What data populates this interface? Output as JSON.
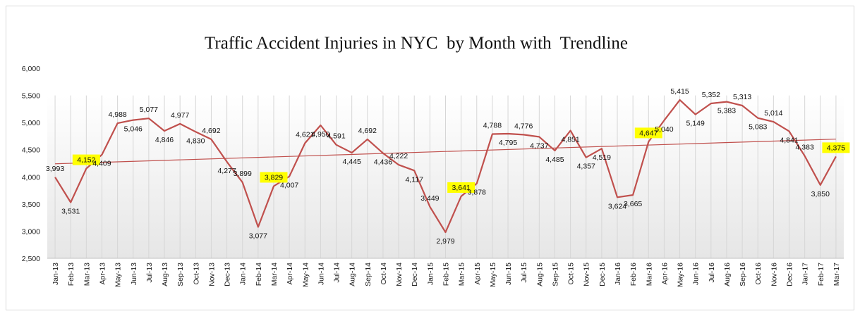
{
  "chart_data": {
    "type": "line",
    "title": "Traffic Accident Injuries in NYC  by Month with  Trendline",
    "xlabel": "",
    "ylabel": "",
    "ylim": [
      2500,
      6000
    ],
    "yticks": [
      "2,500",
      "3,000",
      "3,500",
      "4,000",
      "4,500",
      "5,000",
      "5,500",
      "6,000"
    ],
    "grid": "vertical",
    "legend": "none",
    "categories": [
      "Jan-13",
      "Feb-13",
      "Mar-13",
      "Apr-13",
      "May-13",
      "Jun-13",
      "Jul-13",
      "Aug-13",
      "Sep-13",
      "Oct-13",
      "Nov-13",
      "Dec-13",
      "Jan-14",
      "Feb-14",
      "Mar-14",
      "Apr-14",
      "May-14",
      "Jun-14",
      "Jul-14",
      "Aug-14",
      "Sep-14",
      "Oct-14",
      "Nov-14",
      "Dec-14",
      "Jan-15",
      "Feb-15",
      "Mar-15",
      "Apr-15",
      "May-15",
      "Jun-15",
      "Jul-15",
      "Aug-15",
      "Sep-15",
      "Oct-15",
      "Nov-15",
      "Dec-15",
      "Jan-16",
      "Feb-16",
      "Mar-16",
      "Apr-16",
      "May-16",
      "Jun-16",
      "Jul-16",
      "Aug-16",
      "Sep-16",
      "Oct-16",
      "Nov-16",
      "Dec-16",
      "Jan-17",
      "Feb-17",
      "Mar-17"
    ],
    "series": [
      {
        "values": [
          3993,
          3531,
          4152,
          4409,
          4988,
          5046,
          5077,
          4846,
          4977,
          4830,
          4692,
          4277,
          3899,
          3077,
          3829,
          4007,
          4621,
          4950,
          4591,
          4445,
          4692,
          4436,
          4222,
          4117,
          3449,
          2979,
          3641,
          3878,
          4788,
          4795,
          4776,
          4737,
          4485,
          4851,
          4357,
          4519,
          3624,
          3665,
          4647,
          5040,
          5415,
          5149,
          5352,
          5383,
          5313,
          5083,
          5014,
          4841,
          4383,
          3850,
          4375
        ],
        "labels": [
          "3,993",
          "3,531",
          "4,152",
          "4,409",
          "4,988",
          "5,046",
          "5,077",
          "4,846",
          "4,977",
          "4,830",
          "4,692",
          "4,277",
          "3,899",
          "3,077",
          "3,829",
          "4,007",
          "4,621",
          "4,950",
          "4,591",
          "4,445",
          "4,692",
          "4,436",
          "4,222",
          "4,117",
          "3,449",
          "2,979",
          "3,641",
          "3,878",
          "4,788",
          "4,795",
          "4,776",
          "4,737",
          "4,485",
          "4,851",
          "4,357",
          "4,519",
          "3,624",
          "3,665",
          "4,647",
          "5,040",
          "5,415",
          "5,149",
          "5,352",
          "5,383",
          "5,313",
          "5,083",
          "5,014",
          "4,841",
          "4,383",
          "3,850",
          "4,375"
        ],
        "color": "#c0504d"
      }
    ],
    "trendline": {
      "start": 4240,
      "end": 4695,
      "color": "#c0504d"
    },
    "highlighted_labels": [
      "Mar-13",
      "Mar-14",
      "Mar-15",
      "Mar-16",
      "Mar-17"
    ],
    "highlight_color": "#ffff00"
  }
}
